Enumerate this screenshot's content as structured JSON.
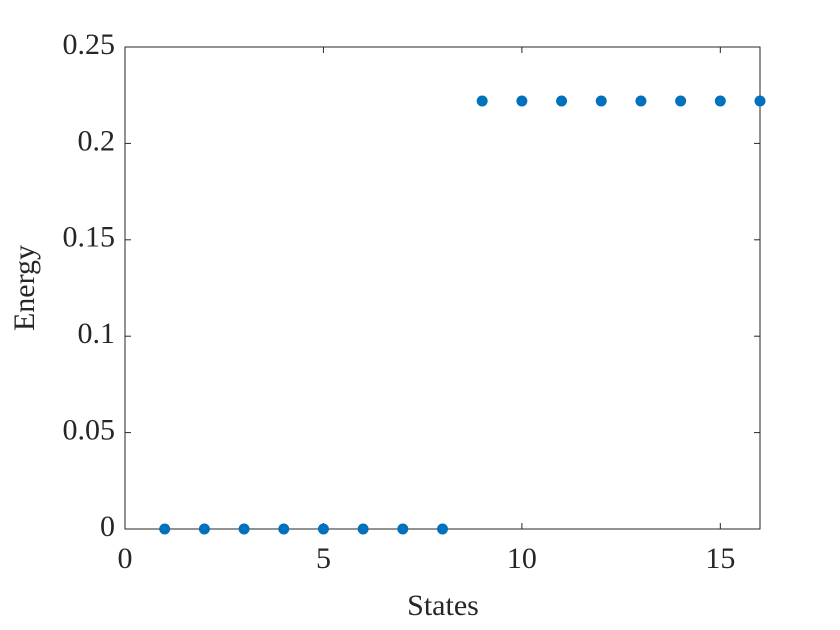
{
  "chart_data": {
    "type": "scatter",
    "x_label": "States",
    "y_label": "Energy",
    "x": [
      1,
      2,
      3,
      4,
      5,
      6,
      7,
      8,
      9,
      10,
      11,
      12,
      13,
      14,
      15,
      16
    ],
    "values": [
      0,
      0,
      0,
      0,
      0,
      0,
      0,
      0,
      0.222,
      0.222,
      0.222,
      0.222,
      0.222,
      0.222,
      0.222,
      0.222
    ],
    "color": "#0072bd",
    "xlim": [
      0,
      16
    ],
    "xticks": [
      0,
      5,
      10,
      15
    ],
    "ylim": [
      0,
      0.25
    ],
    "yticks": [
      0,
      0.05,
      0.1,
      0.15,
      0.2,
      0.25
    ]
  }
}
